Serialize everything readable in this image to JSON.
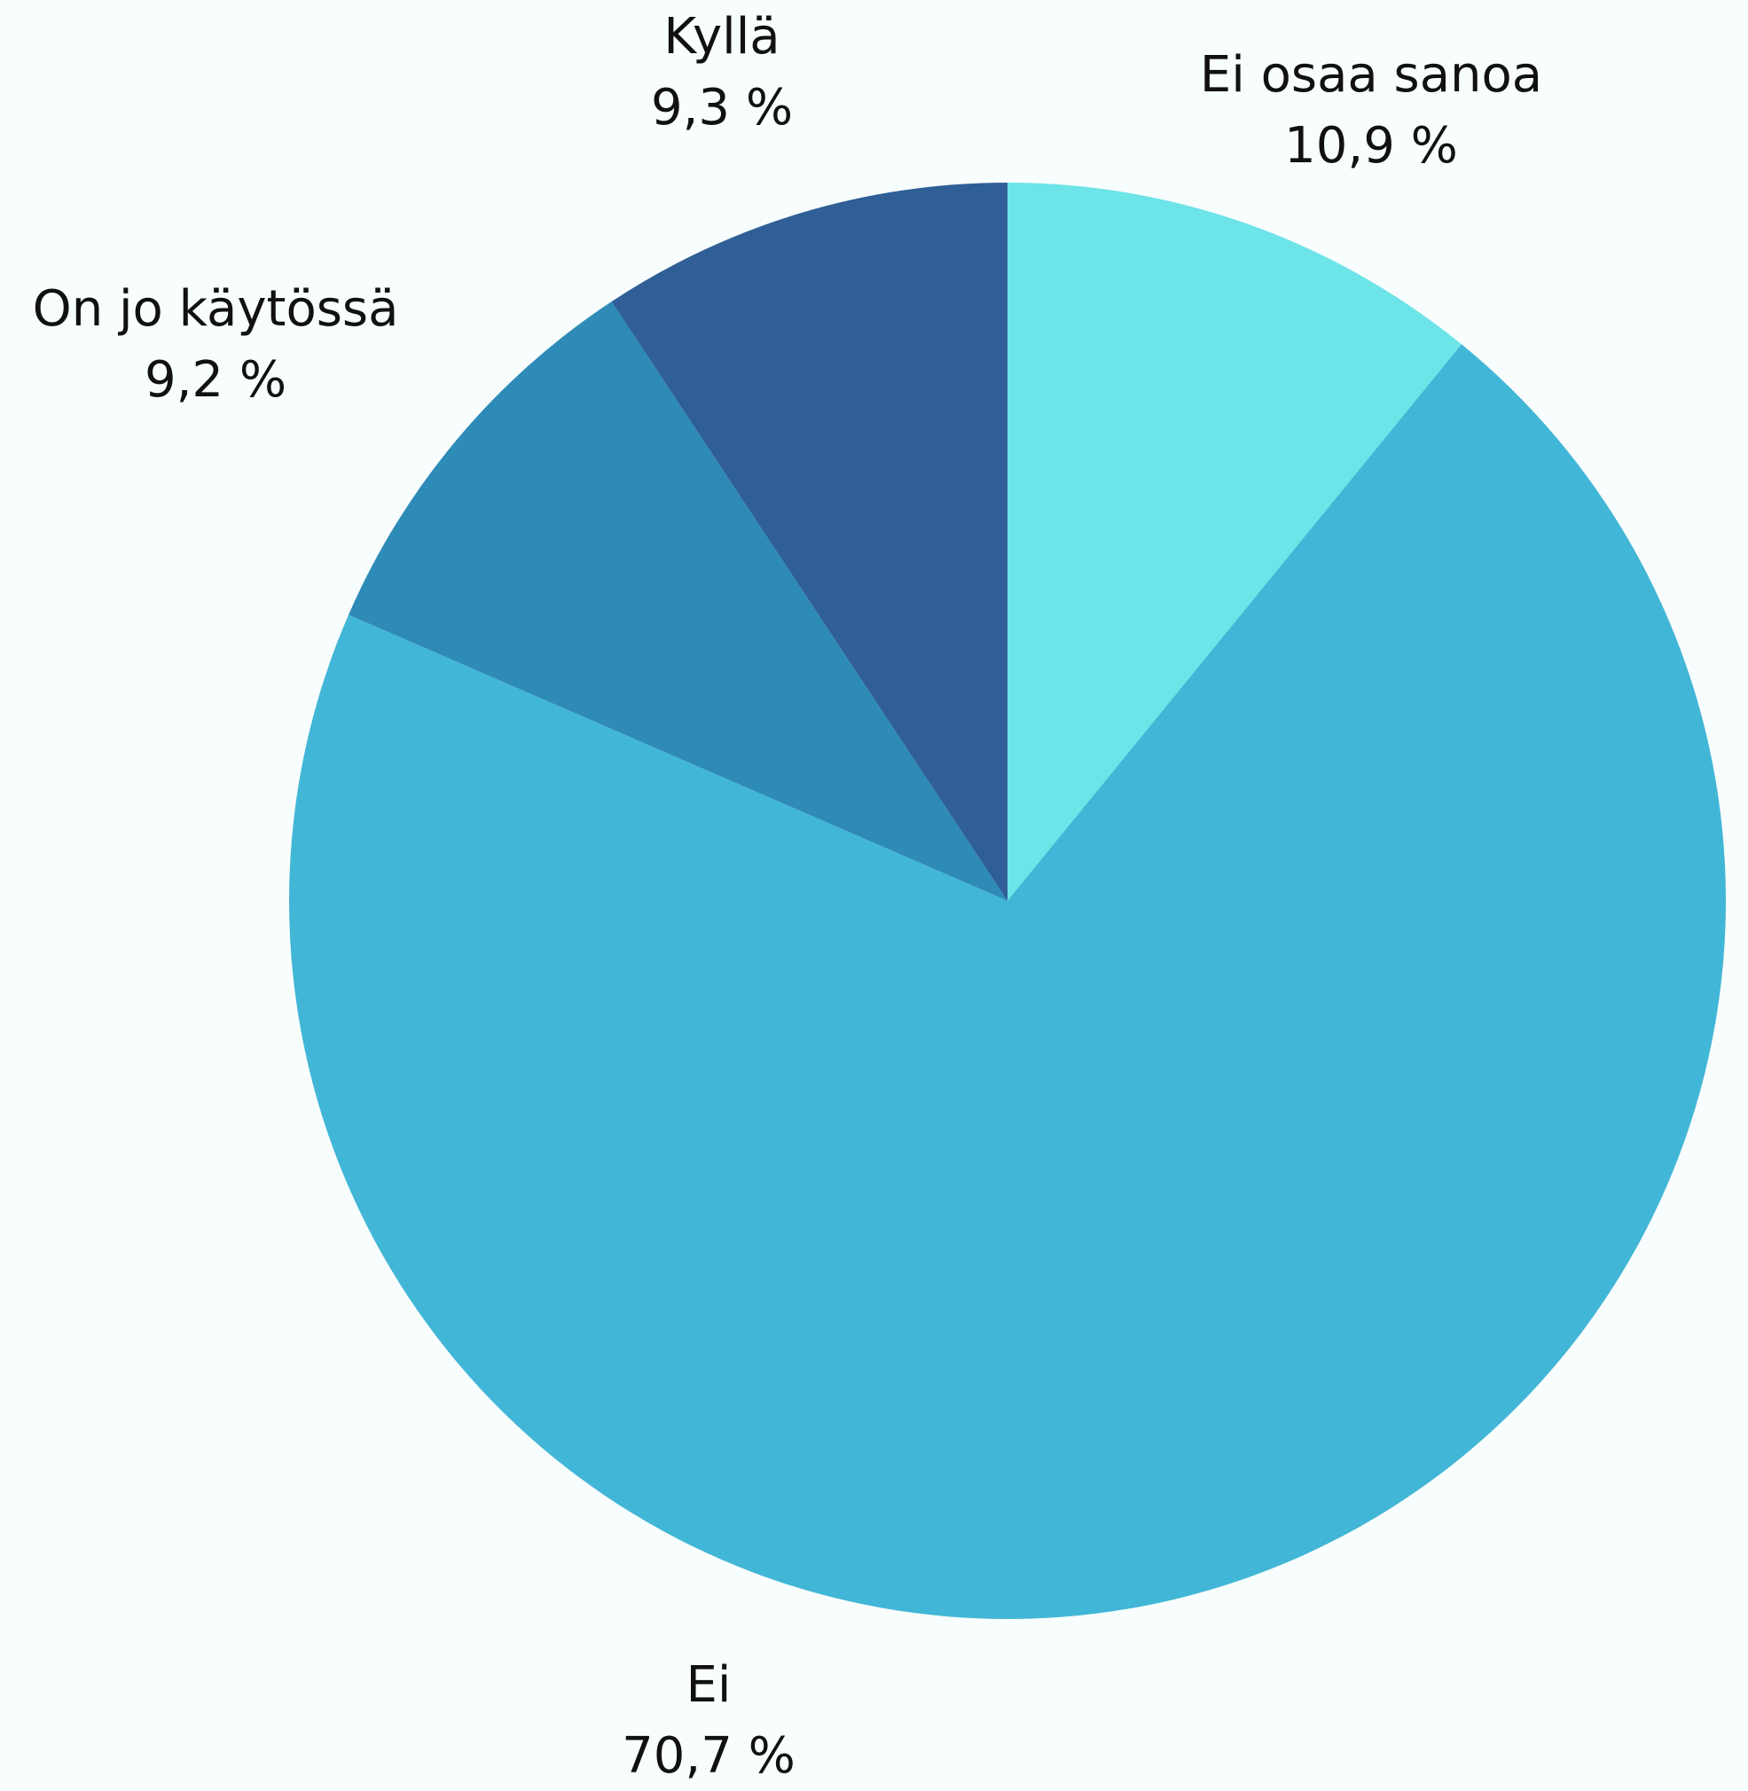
{
  "chart_data": {
    "type": "pie",
    "categories": [
      "Ei osaa sanoa",
      "Ei",
      "On jo käytössä",
      "Kyllä"
    ],
    "values": [
      10.9,
      70.7,
      9.2,
      9.3
    ],
    "value_labels": [
      "10,9 %",
      "70,7 %",
      "9,2 %",
      "9,3 %"
    ],
    "colors": [
      "#6ce4e8",
      "#42b6d6",
      "#2e8bb8",
      "#2f5f96"
    ]
  }
}
